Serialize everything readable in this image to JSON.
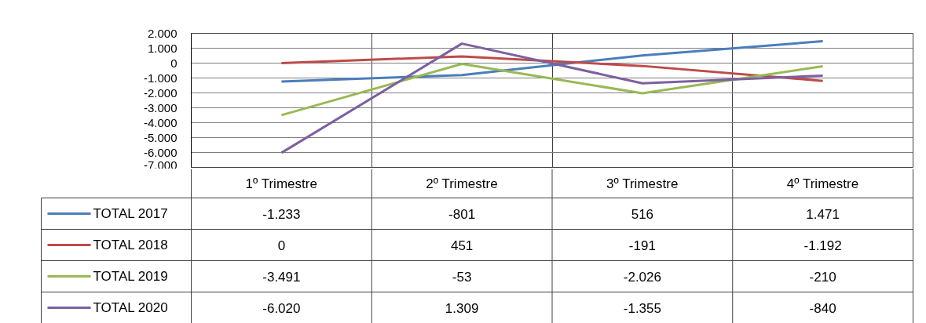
{
  "chart_data": {
    "type": "line",
    "categories": [
      "1º Trimestre",
      "2º Trimestre",
      "3º Trimestre",
      "4º Trimestre"
    ],
    "series": [
      {
        "name": "TOTAL 2017",
        "color": "#4a7ebb",
        "values": [
          -1233,
          -801,
          516,
          1471
        ],
        "value_labels": [
          "-1.233",
          "-801",
          "516",
          "1.471"
        ]
      },
      {
        "name": "TOTAL 2018",
        "color": "#be4b48",
        "values": [
          0,
          451,
          -191,
          -1192
        ],
        "value_labels": [
          "0",
          "451",
          "-191",
          "-1.192"
        ]
      },
      {
        "name": "TOTAL 2019",
        "color": "#98b954",
        "values": [
          -3491,
          -53,
          -2026,
          -210
        ],
        "value_labels": [
          "-3.491",
          "-53",
          "-2.026",
          "-210"
        ]
      },
      {
        "name": "TOTAL 2020",
        "color": "#7d60a0",
        "values": [
          -6020,
          1309,
          -1355,
          -840
        ],
        "value_labels": [
          "-6.020",
          "1.309",
          "-1.355",
          "-840"
        ]
      }
    ],
    "ylim": [
      -7000,
      2000
    ],
    "yticks": [
      {
        "value": 2000,
        "label": "2.000"
      },
      {
        "value": 1000,
        "label": "1.000"
      },
      0,
      {
        "value": -1000,
        "label": "-1.000"
      },
      {
        "value": -2000,
        "label": "-2.000"
      },
      {
        "value": -3000,
        "label": "-3.000"
      },
      {
        "value": -4000,
        "label": "-4.000"
      },
      {
        "value": -5000,
        "label": "-5.000"
      },
      {
        "value": -6000,
        "label": "-6.000"
      },
      {
        "value": -7000,
        "label": "-7.000"
      }
    ],
    "grid": "y",
    "legend": "bottom",
    "marker": "none",
    "line_style": "solid"
  }
}
